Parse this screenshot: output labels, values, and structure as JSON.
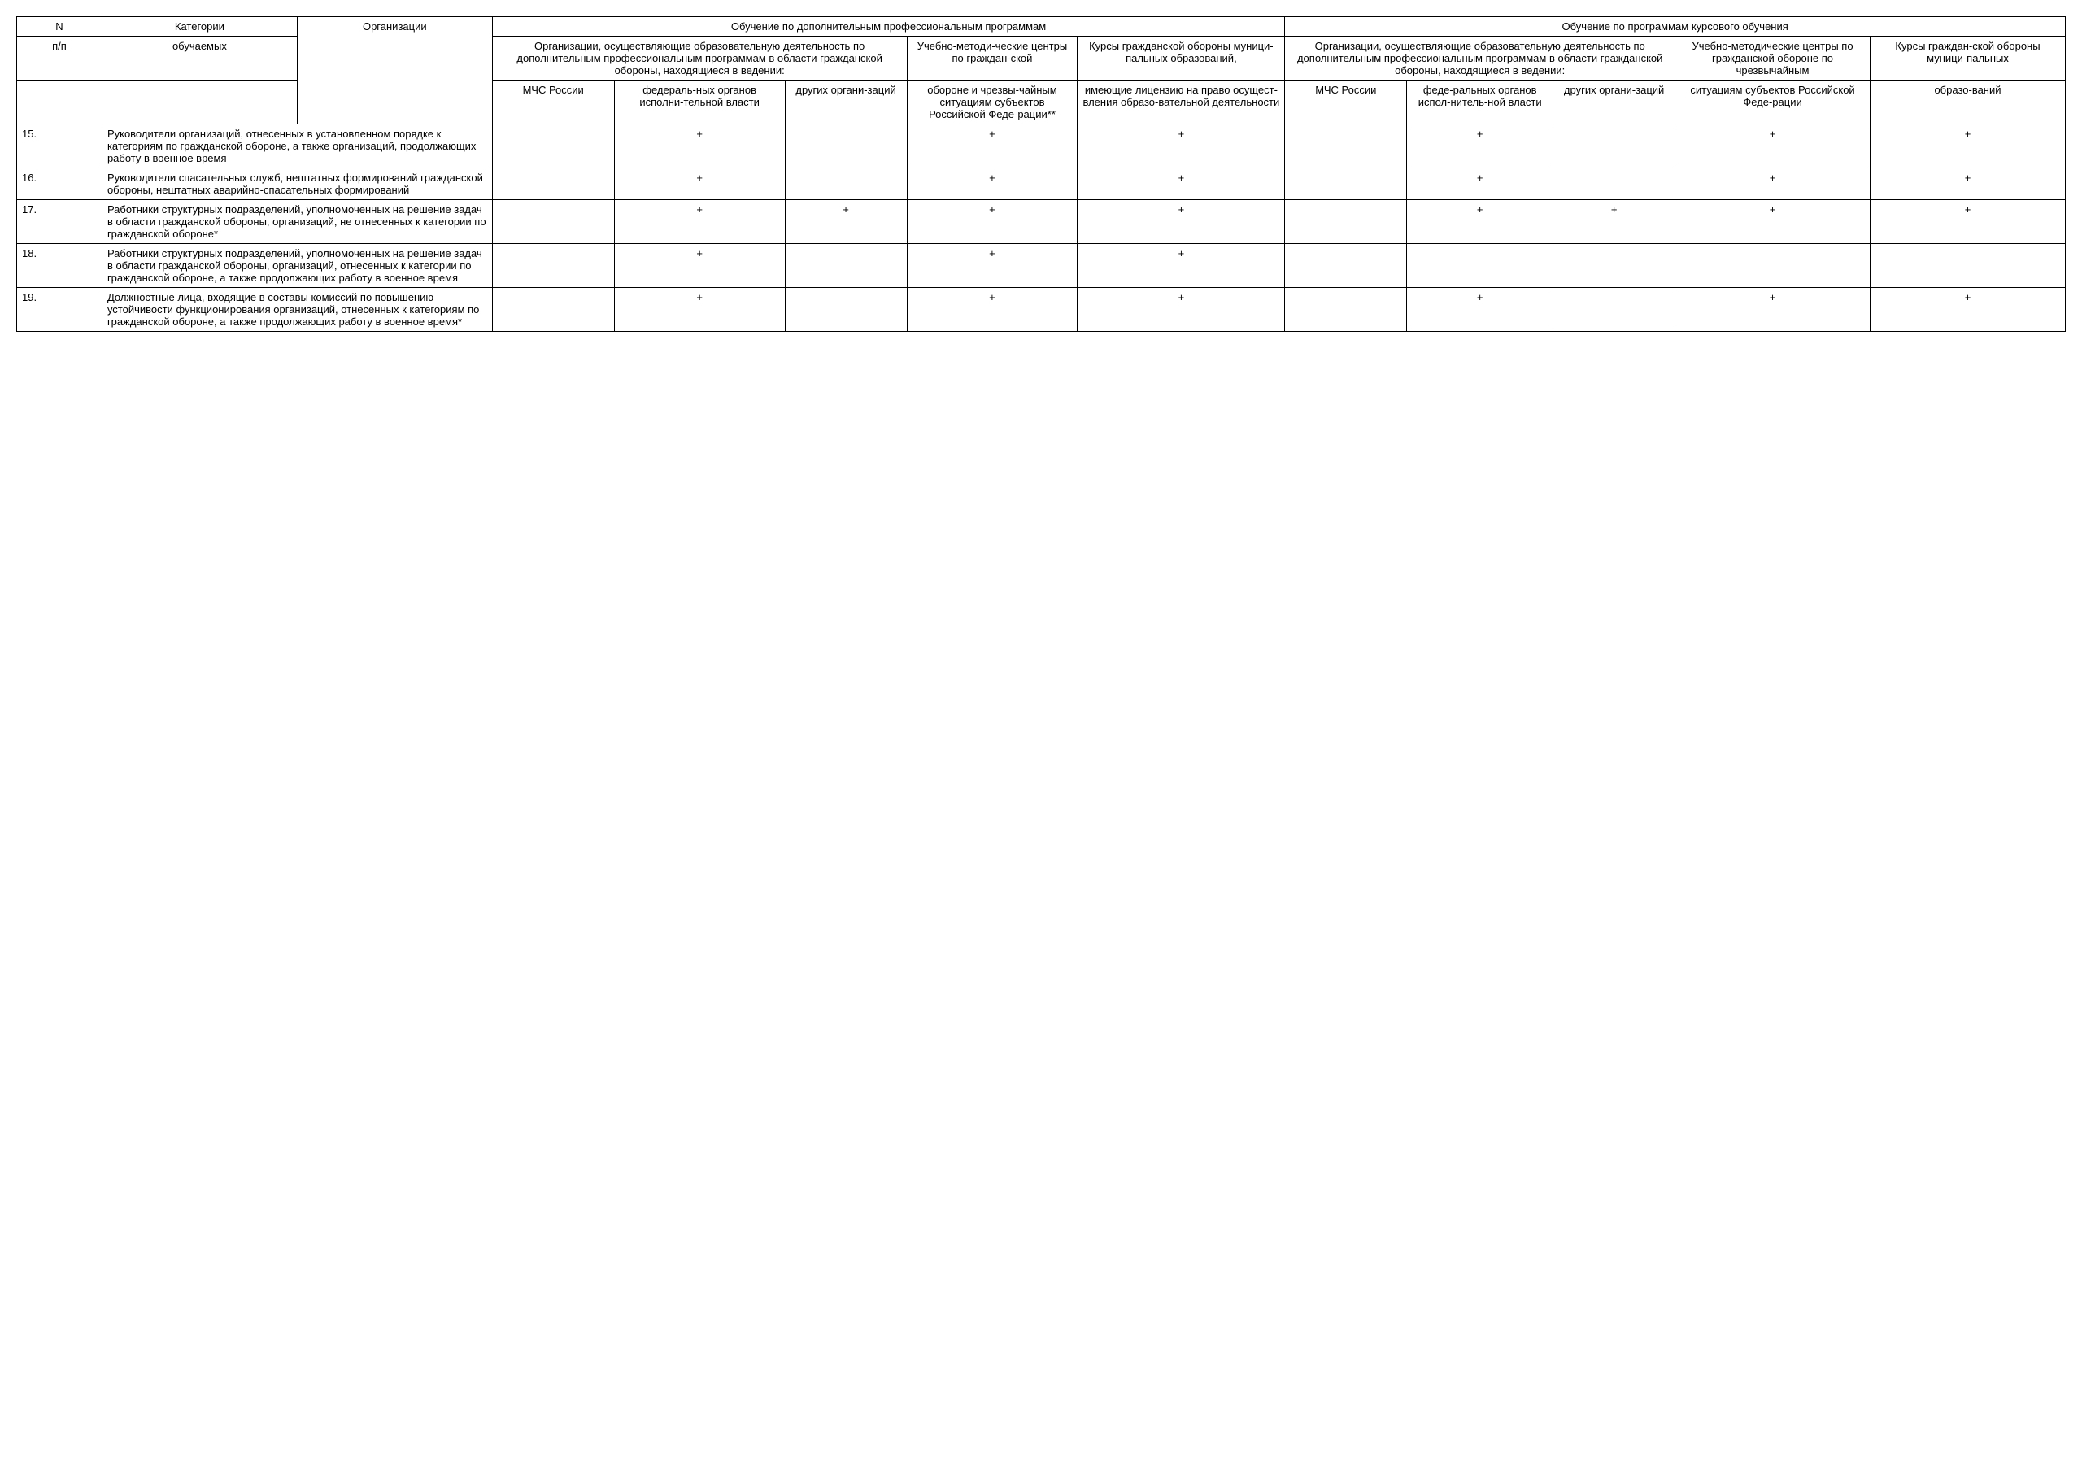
{
  "header": {
    "r1": {
      "c0": "N",
      "c1": "Категории",
      "c2": "Организации",
      "g1": "Обучение по дополнительным профессиональным программам",
      "g2": "Обучение по программам курсового обучения"
    },
    "r2": {
      "c0": "п/п",
      "c1": "обучаемых",
      "g1a": "Организации, осуществляющие образовательную деятельность по дополнительным профессиональным программам в области гражданской обороны, находящиеся в ведении:",
      "g1b": "Учебно-методи-ческие центры по граждан-ской",
      "g1c": "Курсы гражданской обороны муници-пальных образований,",
      "g2a": "Организации, осуществляющие образовательную деятельность по дополнительным профессиональным программам в области гражданской обороны, находящиеся в ведении:",
      "g2b": "Учебно-методические центры по гражданской обороне по чрезвычайным",
      "g2c": "Курсы граждан-ской обороны муници-пальных"
    },
    "r3": {
      "c3": "МЧС России",
      "c4": "федераль-ных органов исполни-тельной власти",
      "c5": "других органи-заций",
      "c6": "обороне и чрезвы-чайным ситуациям субъектов Российской Феде-рации**",
      "c7": "имеющие лицензию на право осущест-вления образо-вательной деятельности",
      "c8": "МЧС России",
      "c9": "феде-ральных органов испол-нитель-ной власти",
      "c10": "других органи-заций",
      "c11": "ситуациям субъектов Российской Феде-рации",
      "c12": "образо-ваний"
    }
  },
  "rows": [
    {
      "n": "15.",
      "cat": "Руководители организаций, отнесенных в установленном порядке к категориям по гражданской обороне, а также организаций, продолжающих работу в военное время",
      "v": [
        "",
        "+",
        "",
        "+",
        "+",
        "",
        "+",
        "",
        "+",
        "+"
      ]
    },
    {
      "n": "16.",
      "cat": "Руководители спасательных служб, нештатных формирований гражданской обороны, нештатных аварийно-спасательных формирований",
      "v": [
        "",
        "+",
        "",
        "+",
        "+",
        "",
        "+",
        "",
        "+",
        "+"
      ]
    },
    {
      "n": "17.",
      "cat": "Работники структурных подразделений, уполномоченных на решение задач в области гражданской обороны, организаций, не отнесенных к категории по гражданской обороне*",
      "v": [
        "",
        "+",
        "+",
        "+",
        "+",
        "",
        "+",
        "+",
        "+",
        "+"
      ]
    },
    {
      "n": "18.",
      "cat": "Работники структурных подразделений, уполномоченных на решение задач в области гражданской обороны, организаций, отнесенных к категории по гражданской обороне, а также продолжающих работу в военное время",
      "v": [
        "",
        "+",
        "",
        "+",
        "+",
        "",
        "",
        "",
        "",
        ""
      ]
    },
    {
      "n": "19.",
      "cat": "Должностные лица, входящие в составы комиссий по повышению устойчивости функционирования организаций, отнесенных к категориям по гражданской обороне, а также продолжающих работу в военное время*",
      "v": [
        "",
        "+",
        "",
        "+",
        "+",
        "",
        "+",
        "",
        "+",
        "+"
      ]
    }
  ],
  "style": {
    "font_family": "Arial, sans-serif",
    "font_size_pt": 10,
    "border_color": "#000000",
    "background_color": "#ffffff",
    "text_color": "#000000",
    "col_widths_pct": [
      3.5,
      8,
      8,
      5,
      7,
      5,
      7,
      8.5,
      5,
      6,
      5,
      8,
      8
    ]
  }
}
